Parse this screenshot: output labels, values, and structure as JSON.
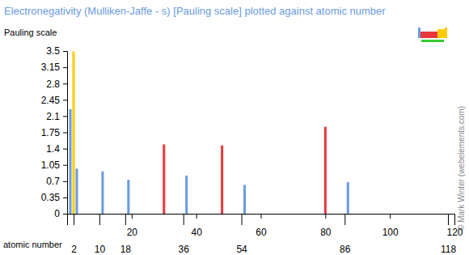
{
  "chart_data": {
    "type": "bar",
    "title": "Electronegativity (Mulliken-Jaffe - s) [Pauling scale] plotted against atomic number",
    "ylabel": "Pauling scale",
    "xlabel": "atomic number",
    "credit": "© Mark Winter (webelements.com)",
    "x": [
      1,
      2,
      3,
      11,
      19,
      30,
      37,
      48,
      55,
      80,
      87
    ],
    "values": [
      2.25,
      3.49,
      0.97,
      0.91,
      0.73,
      1.49,
      0.82,
      1.47,
      0.62,
      1.87,
      0.68
    ],
    "colors": [
      "#6a9be0",
      "#ffcc00",
      "#6a9be0",
      "#6a9be0",
      "#6a9be0",
      "#e8383d",
      "#6a9be0",
      "#e8383d",
      "#6a9be0",
      "#e8383d",
      "#6a9be0"
    ],
    "xlim": [
      0,
      120
    ],
    "xticks": [
      20,
      40,
      60,
      80,
      100,
      120
    ],
    "period_ticks": [
      2,
      10,
      18,
      36,
      54,
      86,
      118
    ],
    "ylim": [
      0,
      3.5
    ],
    "yticks": [
      0,
      0.35,
      0.7,
      1.05,
      1.4,
      1.75,
      2.1,
      2.45,
      2.8,
      3.15,
      3.5
    ],
    "grid": false
  }
}
